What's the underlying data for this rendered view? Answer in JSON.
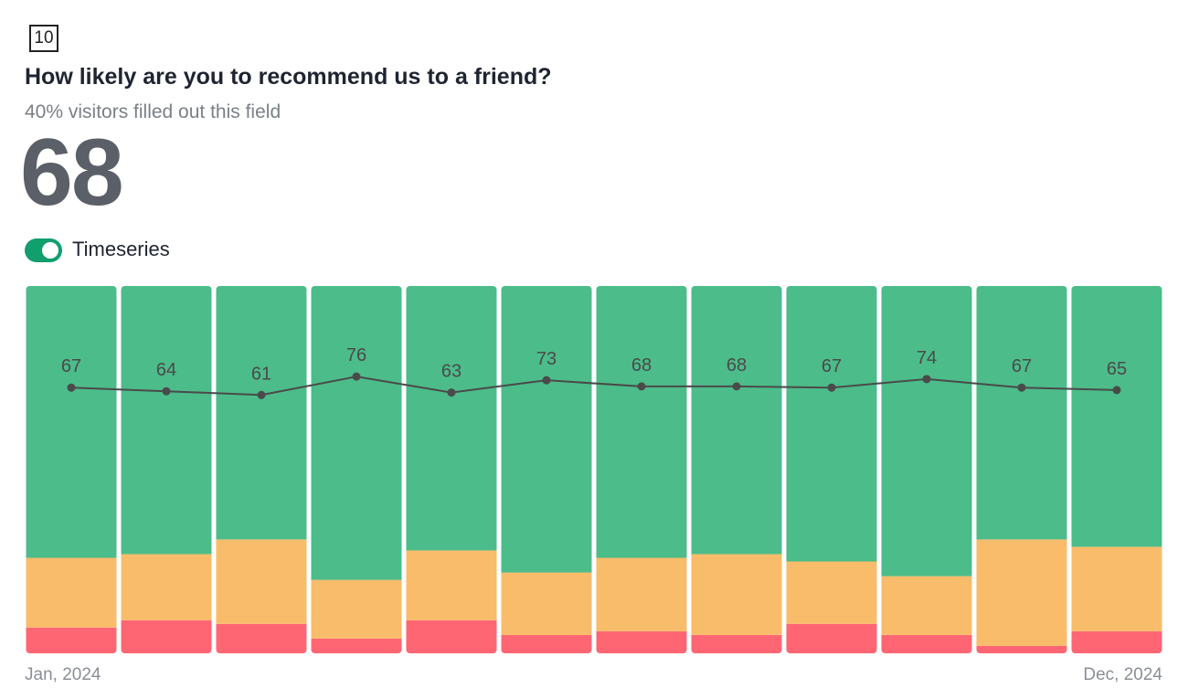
{
  "header": {
    "badge": "10",
    "title": "How likely are you to recommend us to a friend?",
    "subtitle": "40% visitors filled out this field",
    "score": 68,
    "toggle_label": "Timeseries",
    "toggle_on": true
  },
  "chart_data": {
    "type": "bar",
    "stacked": true,
    "categories": [
      "Jan, 2024",
      null,
      null,
      null,
      null,
      null,
      null,
      null,
      null,
      null,
      null,
      "Dec, 2024"
    ],
    "ylim": [
      0,
      100
    ],
    "y2lim": [
      -150,
      150
    ],
    "series": [
      {
        "color": "#ff6673",
        "values": [
          7,
          9,
          8,
          4,
          9,
          5,
          6,
          5,
          8,
          5,
          2,
          6
        ]
      },
      {
        "color": "#f8bc6a",
        "values": [
          19,
          18,
          23,
          16,
          19,
          17,
          20,
          22,
          17,
          16,
          29,
          23
        ]
      },
      {
        "color": "#4cbc8a",
        "values": [
          74,
          73,
          69,
          80,
          72,
          78,
          74,
          73,
          75,
          79,
          69,
          71
        ]
      },
      {
        "type": "line",
        "axis": "y2",
        "color": "#4a4a4a",
        "values": [
          67,
          64,
          61,
          76,
          63,
          73,
          68,
          68,
          67,
          74,
          67,
          65
        ]
      }
    ]
  }
}
